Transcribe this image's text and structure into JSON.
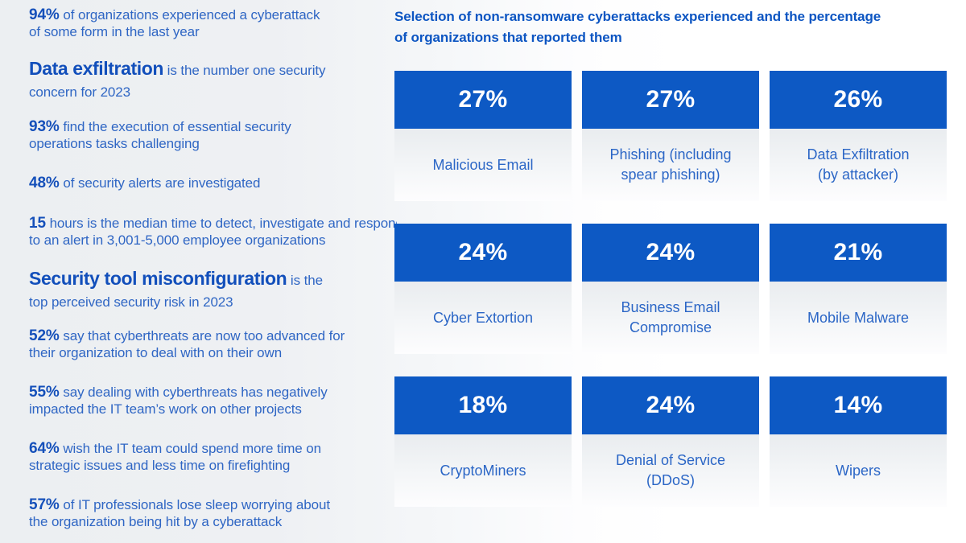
{
  "colors": {
    "accent_blue": "#0d59c4",
    "lead_text_blue": "#1550ba",
    "body_text_blue": "#2f66c4",
    "card_label_blue": "#2b66c6",
    "card_value_text": "#ffffff",
    "bg_left": "#eceff2",
    "bg_right": "#ffffff",
    "label_area_top": "#e9ecef"
  },
  "left_stats": [
    {
      "lead": "94%",
      "text": "of organizations experienced a cyberattack\nof some form in the last year"
    },
    {
      "lead": "Data exfiltration",
      "text": "is the number one security\nconcern for 2023"
    },
    {
      "lead": "93%",
      "text": "find the execution of essential security\noperations tasks challenging"
    },
    {
      "lead": "48%",
      "text": "of security alerts are investigated"
    },
    {
      "lead": "15",
      "text": "hours is the median time to detect, investigate and respond\nto an alert in 3,001-5,000 employee organizations"
    },
    {
      "lead": "Security tool misconfiguration",
      "text": "is the\ntop perceived security risk in 2023"
    },
    {
      "lead": "52%",
      "text": "say that cyberthreats are now too advanced for\ntheir organization to deal with on their own"
    },
    {
      "lead": "55%",
      "text": "say dealing with cyberthreats has negatively\nimpacted the IT team’s work on other projects"
    },
    {
      "lead": "64%",
      "text": "wish the IT team could spend more time on\nstrategic issues and less time on firefighting"
    },
    {
      "lead": "57%",
      "text": "of IT professionals lose sleep worrying about\nthe organization being hit by a cyberattack"
    }
  ],
  "right_panel": {
    "title": "Selection of non-ransomware cyberattacks experienced and the percentage\nof organizations that reported them",
    "cards": [
      {
        "value": "27%",
        "label": "Malicious Email"
      },
      {
        "value": "27%",
        "label": "Phishing (including\nspear phishing)"
      },
      {
        "value": "26%",
        "label": "Data Exfiltration\n(by attacker)"
      },
      {
        "value": "24%",
        "label": "Cyber Extortion"
      },
      {
        "value": "24%",
        "label": "Business Email\nCompromise"
      },
      {
        "value": "21%",
        "label": "Mobile Malware"
      },
      {
        "value": "18%",
        "label": "CryptoMiners"
      },
      {
        "value": "24%",
        "label": "Denial of Service\n(DDoS)"
      },
      {
        "value": "14%",
        "label": "Wipers"
      }
    ]
  },
  "chart_data": {
    "type": "table",
    "title": "Selection of non-ransomware cyberattacks experienced and the percentage of organizations that reported them",
    "categories": [
      "Malicious Email",
      "Phishing (including spear phishing)",
      "Data Exfiltration (by attacker)",
      "Cyber Extortion",
      "Business Email Compromise",
      "Mobile Malware",
      "CryptoMiners",
      "Denial of Service (DDoS)",
      "Wipers"
    ],
    "values": [
      27,
      27,
      26,
      24,
      24,
      21,
      18,
      24,
      14
    ],
    "unit": "%",
    "layout": "3x3 grid of value cards, blue header with white percentage, light label area below"
  }
}
